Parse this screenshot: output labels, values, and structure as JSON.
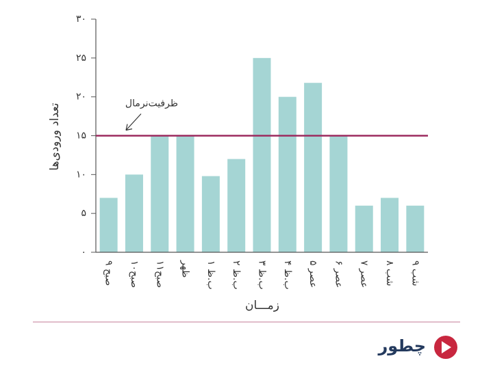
{
  "chart_data": {
    "type": "bar",
    "y_label": "تعداد ورودی‌ها",
    "x_label": "زمـــان",
    "categories": [
      "۹ صبح",
      "۱۰صبح",
      "۱۱صبح",
      "ظهر",
      "۱ ب.ظ",
      "۲ ب.ظ",
      "۳ ب.ظ",
      "۴ ب.ظ",
      "۵ عصر",
      "۶ عصر",
      "۷ عصر",
      "۸ شب",
      "۹ شب"
    ],
    "values": [
      7,
      10,
      15,
      15,
      9.8,
      12,
      25,
      20,
      21.8,
      15,
      6,
      7,
      6
    ],
    "color": "#a5d5d4",
    "ylim": [
      0,
      30
    ],
    "yticks": [
      {
        "value": 0,
        "label": "۰"
      },
      {
        "value": 5,
        "label": "۵"
      },
      {
        "value": 10,
        "label": "۱۰"
      },
      {
        "value": 15,
        "label": "۱۵"
      },
      {
        "value": 20,
        "label": "۲۰"
      },
      {
        "value": 25,
        "label": "۲۵"
      },
      {
        "value": 30,
        "label": "۳۰"
      }
    ],
    "reference_line": {
      "value": 15,
      "label": "ظرفیت‌نرمال",
      "color": "#9c2a5e"
    },
    "grid": false
  },
  "logo": "چطور"
}
